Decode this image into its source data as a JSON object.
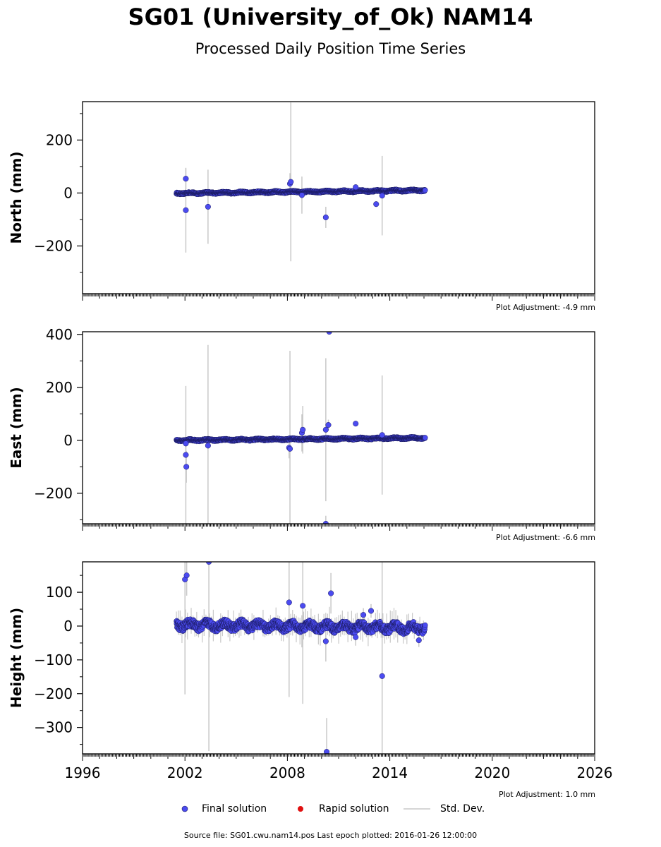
{
  "title": "SG01 (University_of_Ok) NAM14",
  "subtitle": "Processed Daily Position Time Series",
  "footer": "Source file: SG01.cwu.nam14.pos  Last epoch plotted: 2016-01-26 12:00:00",
  "legend": {
    "final": "Final solution",
    "rapid": "Rapid solution",
    "std": "Std. Dev."
  },
  "colors": {
    "final": "#4b4bf0",
    "final_edge": "#1a1a60",
    "rapid": "#e01010",
    "std": "#c8c8c8"
  },
  "chart_data": [
    {
      "type": "scatter",
      "ylabel": "North (mm)",
      "adjustment": "Plot Adjustment: -4.9 mm",
      "xlim": [
        1996,
        2026
      ],
      "ylim": [
        -380,
        345
      ],
      "yticks": [
        -200,
        0,
        200
      ],
      "xticks": [],
      "baseline": {
        "start": 2001.5,
        "end": 2016.07,
        "y0": -1,
        "y1": 10,
        "noise": 3
      },
      "outliers": [
        {
          "x": 2002.05,
          "y": 54,
          "err": 40
        },
        {
          "x": 2002.05,
          "y": -65,
          "err": 160
        },
        {
          "x": 2003.35,
          "y": -52,
          "err": 140
        },
        {
          "x": 2008.15,
          "y": 35,
          "err": 40
        },
        {
          "x": 2008.2,
          "y": 42,
          "err": 300
        },
        {
          "x": 2008.85,
          "y": -8,
          "err": 70
        },
        {
          "x": 2010.25,
          "y": -92,
          "err": 40
        },
        {
          "x": 2012.0,
          "y": 22,
          "err": 10
        },
        {
          "x": 2013.2,
          "y": -42,
          "err": 10
        },
        {
          "x": 2013.55,
          "y": -10,
          "err": 150
        }
      ]
    },
    {
      "type": "scatter",
      "ylabel": "East (mm)",
      "adjustment": "Plot Adjustment: -6.6 mm",
      "xlim": [
        1996,
        2026
      ],
      "ylim": [
        -315,
        410
      ],
      "yticks": [
        -200,
        0,
        200,
        400
      ],
      "xticks": [],
      "baseline": {
        "start": 2001.5,
        "end": 2016.07,
        "y0": 0,
        "y1": 9,
        "noise": 3
      },
      "outliers": [
        {
          "x": 2002.05,
          "y": -12,
          "err": 30
        },
        {
          "x": 2002.05,
          "y": -55,
          "err": 260
        },
        {
          "x": 2002.08,
          "y": -100,
          "err": 60
        },
        {
          "x": 2003.35,
          "y": -20,
          "err": 380
        },
        {
          "x": 2008.1,
          "y": -28,
          "err": 40
        },
        {
          "x": 2008.15,
          "y": -32,
          "err": 370
        },
        {
          "x": 2008.85,
          "y": 28,
          "err": 70
        },
        {
          "x": 2008.9,
          "y": 40,
          "err": 90
        },
        {
          "x": 2010.25,
          "y": 40,
          "err": 270
        },
        {
          "x": 2010.25,
          "y": -315,
          "err": 30
        },
        {
          "x": 2010.4,
          "y": 58,
          "err": 20
        },
        {
          "x": 2010.45,
          "y": 410,
          "err": 10
        },
        {
          "x": 2012.0,
          "y": 63,
          "err": 10
        },
        {
          "x": 2013.55,
          "y": 20,
          "err": 225
        }
      ]
    },
    {
      "type": "scatter",
      "ylabel": "Height (mm)",
      "adjustment": "Plot Adjustment: 1.0 mm",
      "xlim": [
        1996,
        2026
      ],
      "ylim": [
        -378,
        190
      ],
      "yticks": [
        -300,
        -200,
        -100,
        0,
        100
      ],
      "xticks": [
        "1996",
        "2002",
        "2008",
        "2014",
        "2020",
        "2026"
      ],
      "baseline": {
        "start": 2001.5,
        "end": 2016.07,
        "y0": 4,
        "y1": -6,
        "noise": 12
      },
      "outliers": [
        {
          "x": 2002.0,
          "y": 138,
          "err": 340
        },
        {
          "x": 2002.1,
          "y": 150,
          "err": 60
        },
        {
          "x": 2003.4,
          "y": 190,
          "err": 560
        },
        {
          "x": 2008.1,
          "y": 70,
          "err": 280
        },
        {
          "x": 2008.9,
          "y": 60,
          "err": 290
        },
        {
          "x": 2010.25,
          "y": -45,
          "err": 60
        },
        {
          "x": 2010.3,
          "y": -372,
          "err": 100
        },
        {
          "x": 2010.55,
          "y": 97,
          "err": 60
        },
        {
          "x": 2012.0,
          "y": -33,
          "err": 25
        },
        {
          "x": 2012.45,
          "y": 33,
          "err": 20
        },
        {
          "x": 2012.9,
          "y": 45,
          "err": 20
        },
        {
          "x": 2013.55,
          "y": -148,
          "err": 340
        },
        {
          "x": 2015.7,
          "y": -42,
          "err": 20
        }
      ]
    }
  ]
}
